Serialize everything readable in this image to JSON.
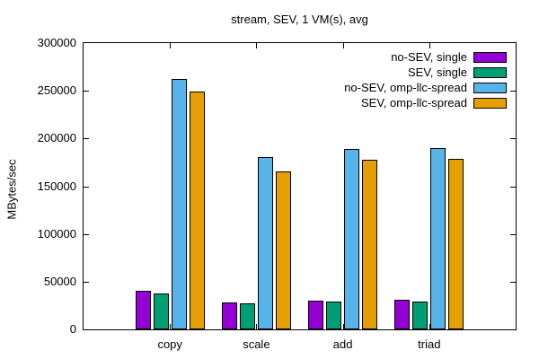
{
  "chart_data": {
    "type": "bar",
    "title": "stream, SEV, 1 VM(s), avg",
    "ylabel": "MBytes/sec",
    "xlabel": "",
    "categories": [
      "copy",
      "scale",
      "add",
      "triad"
    ],
    "series": [
      {
        "name": "no-SEV, single",
        "color": "#9400d3",
        "values": [
          40000,
          28500,
          30000,
          31000
        ]
      },
      {
        "name": "SEV, single",
        "color": "#009e73",
        "values": [
          38000,
          27500,
          29000,
          29000
        ]
      },
      {
        "name": "no-SEV, omp-llc-spread",
        "color": "#56b4e9",
        "values": [
          262000,
          181000,
          189000,
          190000
        ]
      },
      {
        "name": "SEV, omp-llc-spread",
        "color": "#e69f00",
        "values": [
          249000,
          165500,
          178000,
          179000
        ]
      }
    ],
    "ylim": [
      0,
      300000
    ],
    "yticks": [
      0,
      50000,
      100000,
      150000,
      200000,
      250000,
      300000
    ],
    "grid": false,
    "legend_position": "top-right",
    "axis_color": "#000000",
    "background_color": "#ffffff"
  }
}
